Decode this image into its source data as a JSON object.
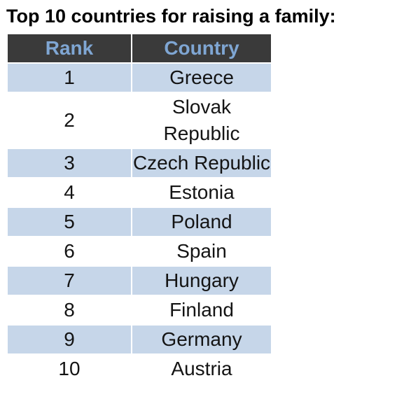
{
  "title": "Top 10 countries for raising a family:",
  "table": {
    "headers": {
      "rank": "Rank",
      "country": "Country"
    },
    "rows": [
      {
        "rank": "1",
        "country": "Greece"
      },
      {
        "rank": "2",
        "country": "Slovak Republic"
      },
      {
        "rank": "3",
        "country": "Czech Republic"
      },
      {
        "rank": "4",
        "country": "Estonia"
      },
      {
        "rank": "5",
        "country": "Poland"
      },
      {
        "rank": "6",
        "country": "Spain"
      },
      {
        "rank": "7",
        "country": "Hungary"
      },
      {
        "rank": "8",
        "country": "Finland"
      },
      {
        "rank": "9",
        "country": "Germany"
      },
      {
        "rank": "10",
        "country": "Austria"
      }
    ]
  },
  "colors": {
    "header_background": "#3a3a3a",
    "header_text": "#7fa6d3",
    "shaded_row": "#c6d6e9",
    "plain_row": "#ffffff"
  }
}
